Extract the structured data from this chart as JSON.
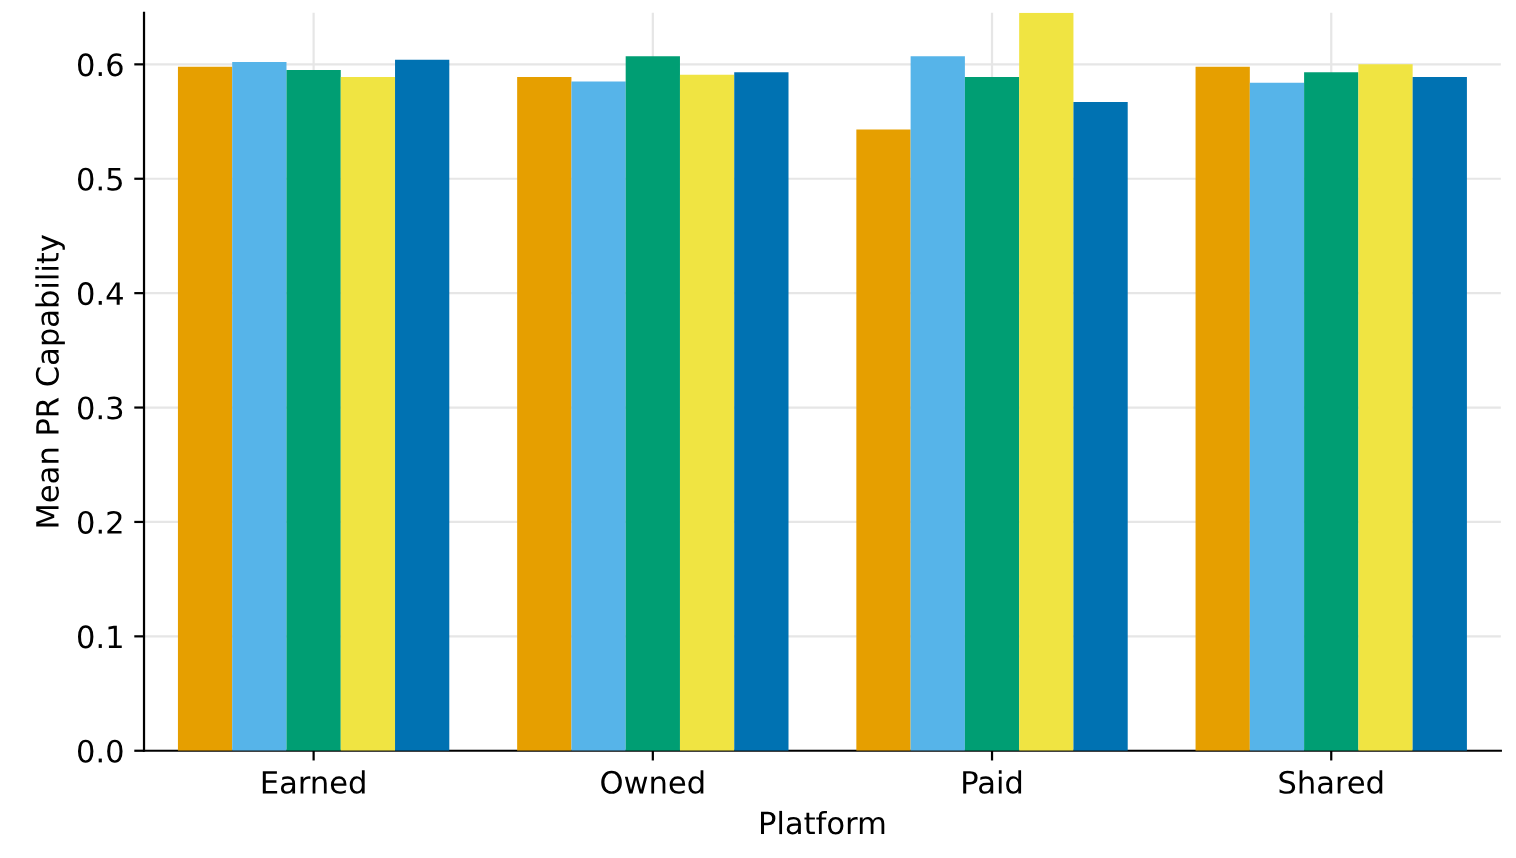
{
  "chart_data": {
    "type": "bar",
    "xlabel": "Platform",
    "ylabel": "Mean PR Capability",
    "categories": [
      "Earned",
      "Owned",
      "Paid",
      "Shared"
    ],
    "series": [
      {
        "color": "#e69f00",
        "values": [
          0.598,
          0.589,
          0.543,
          0.598
        ]
      },
      {
        "color": "#56b4e9",
        "values": [
          0.602,
          0.585,
          0.607,
          0.584
        ]
      },
      {
        "color": "#009e73",
        "values": [
          0.595,
          0.607,
          0.589,
          0.593
        ]
      },
      {
        "color": "#f0e442",
        "values": [
          0.589,
          0.591,
          0.645,
          0.6
        ]
      },
      {
        "color": "#0072b2",
        "values": [
          0.604,
          0.593,
          0.567,
          0.589
        ]
      }
    ],
    "ylim": [
      0,
      0.645
    ],
    "yticks": [
      {
        "value": 0,
        "label": "0.0"
      },
      0.1,
      0.2,
      0.3,
      0.4,
      0.5,
      0.6
    ],
    "grid": true
  }
}
